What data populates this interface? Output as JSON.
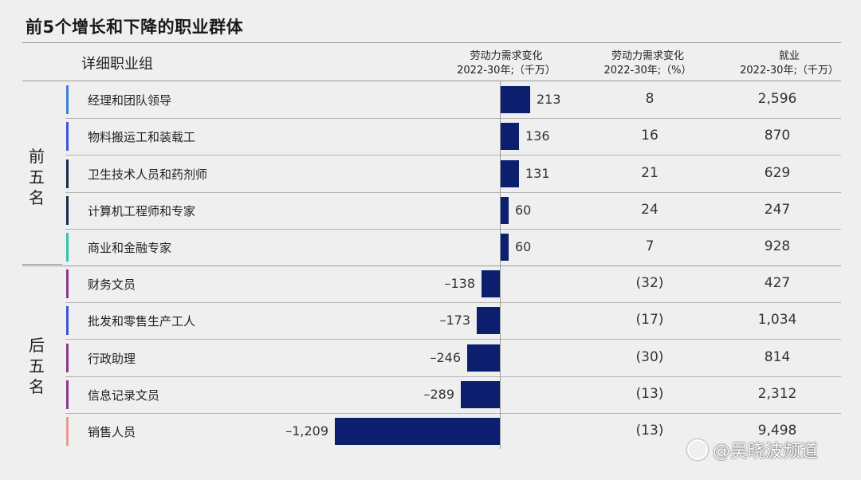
{
  "title": "前5个增长和下降的职业群体",
  "headers": {
    "group": "详细职业组",
    "demand_change_abs": [
      "劳动力需求变化",
      "2022-30年;（千万）"
    ],
    "demand_change_pct": [
      "劳动力需求变化",
      "2022-30年;（%）"
    ],
    "employment": [
      "就业",
      "2022-30年;（千万）"
    ]
  },
  "side_labels": {
    "top": "前五名",
    "bottom": "后五名"
  },
  "watermark": "@吴晓波频道",
  "colors": {
    "bar": "#0b1f6e"
  },
  "chart_data": {
    "type": "bar",
    "orientation": "horizontal",
    "title": "前5个增长和下降的职业群体",
    "categories": [
      "经理和团队领导",
      "物料搬运工和装载工",
      "卫生技术人员和药剂师",
      "计算机工程师和专家",
      "商业和金融专家",
      "财务文员",
      "批发和零售生产工人",
      "行政助理",
      "信息记录文员",
      "销售人员"
    ],
    "values": [
      213,
      136,
      131,
      60,
      60,
      -138,
      -173,
      -246,
      -289,
      -1209
    ],
    "xlim": [
      -1209,
      213
    ],
    "rows": [
      {
        "label": "经理和团队领导",
        "value": 213,
        "value_text": "213",
        "pct": "8",
        "employment": "2,596",
        "accent": "#3a7fd6"
      },
      {
        "label": "物料搬运工和装载工",
        "value": 136,
        "value_text": "136",
        "pct": "16",
        "employment": "870",
        "accent": "#3e54d8"
      },
      {
        "label": "卫生技术人员和药剂师",
        "value": 131,
        "value_text": "131",
        "pct": "21",
        "employment": "629",
        "accent": "#1c2b4a"
      },
      {
        "label": "计算机工程师和专家",
        "value": 60,
        "value_text": "60",
        "pct": "24",
        "employment": "247",
        "accent": "#1c2b4a"
      },
      {
        "label": "商业和金融专家",
        "value": 60,
        "value_text": "60",
        "pct": "7",
        "employment": "928",
        "accent": "#33c4b0"
      },
      {
        "label": "财务文员",
        "value": -138,
        "value_text": "–138",
        "pct": "(32)",
        "employment": "427",
        "accent": "#8a3a8c"
      },
      {
        "label": "批发和零售生产工人",
        "value": -173,
        "value_text": "–173",
        "pct": "(17)",
        "employment": "1,034",
        "accent": "#3e54d8"
      },
      {
        "label": "行政助理",
        "value": -246,
        "value_text": "–246",
        "pct": "(30)",
        "employment": "814",
        "accent": "#8a3a8c"
      },
      {
        "label": "信息记录文员",
        "value": -289,
        "value_text": "–289",
        "pct": "(13)",
        "employment": "2,312",
        "accent": "#8a3a8c"
      },
      {
        "label": "销售人员",
        "value": -1209,
        "value_text": "–1,209",
        "pct": "(13)",
        "employment": "9,498",
        "accent": "#e89a90"
      }
    ]
  }
}
